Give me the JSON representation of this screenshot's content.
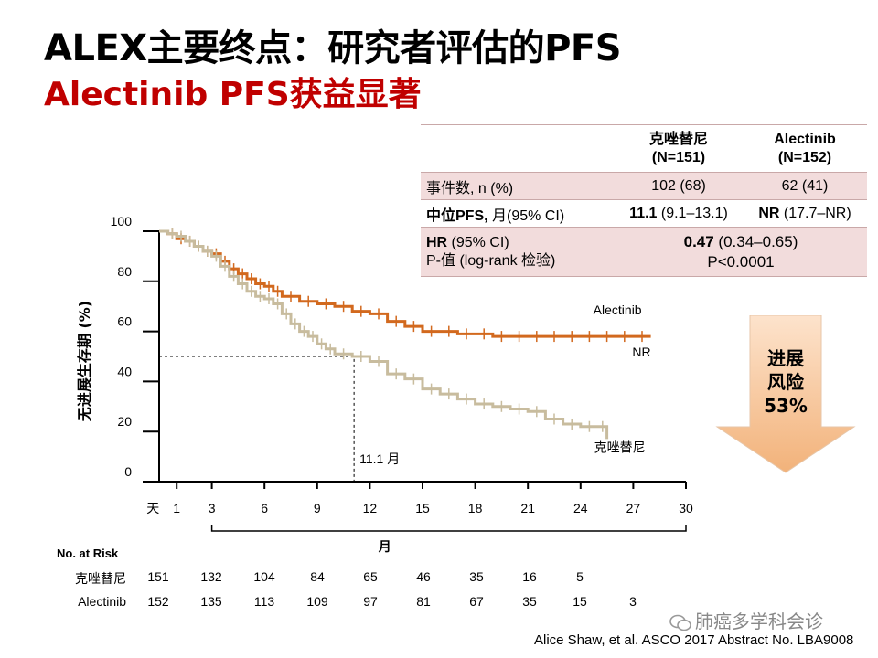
{
  "slide": {
    "title_line1": "ALEX主要终点：研究者评估的PFS",
    "title_line2": "Alectinib PFS获益显著"
  },
  "stats_table": {
    "col_crizotinib": "克唑替尼",
    "col_crizotinib_n": "(N=151)",
    "col_alectinib": "Alectinib",
    "col_alectinib_n": "(N=152)",
    "events_label": "事件数, n (%)",
    "events_crizotinib": "102 (68)",
    "events_alectinib": "62 (41)",
    "median_label_bold": "中位PFS,",
    "median_label_rest": " 月(95% CI)",
    "median_crizotinib_bold": "11.1",
    "median_crizotinib_ci": " (9.1–13.1)",
    "median_alectinib_bold": "NR",
    "median_alectinib_ci": " (17.7–NR)",
    "hr_label_bold": "HR",
    "hr_label_rest": " (95% CI)",
    "pvalue_label": "P-值 (log-rank 检验)",
    "hr_value_bold": "0.47",
    "hr_value_ci": " (0.34–0.65)",
    "pvalue": "P<0.0001"
  },
  "chart_data": {
    "type": "line",
    "ylabel": "无进展生存期 (%)",
    "xlabel": "月",
    "x_ticks": [
      "1",
      "3",
      "6",
      "9",
      "12",
      "15",
      "18",
      "21",
      "24",
      "27",
      "30"
    ],
    "x_tick_values": [
      1,
      3,
      6,
      9,
      12,
      15,
      18,
      21,
      24,
      27,
      30
    ],
    "x_first_prefix": "天",
    "y_ticks": [
      "0",
      "20",
      "40",
      "60",
      "80",
      "100"
    ],
    "ylim": [
      0,
      100
    ],
    "xlim": [
      0,
      30
    ],
    "series": [
      {
        "name": "Alectinib",
        "end_label": "NR",
        "color": "#d2691e",
        "x": [
          0,
          0.5,
          1,
          1.5,
          2,
          2.5,
          3,
          3.5,
          4,
          4.5,
          5,
          5.5,
          6,
          6.5,
          7,
          8,
          9,
          10,
          11,
          12,
          13,
          14,
          15,
          16,
          17,
          18,
          19,
          20,
          21,
          22,
          23,
          24,
          25,
          26,
          27,
          28
        ],
        "y": [
          100,
          99,
          97,
          96,
          94,
          92,
          91,
          88,
          85,
          83,
          81,
          79,
          78,
          76,
          74,
          72,
          71,
          70,
          68,
          67,
          64,
          62,
          60,
          60,
          59,
          59,
          58,
          58,
          58,
          58,
          58,
          58,
          58,
          58,
          58,
          58
        ]
      },
      {
        "name": "克唑替尼",
        "color": "#c8bc9e",
        "x": [
          0,
          0.5,
          1,
          1.5,
          2,
          2.5,
          3,
          3.5,
          4,
          4.5,
          5,
          5.5,
          6,
          6.5,
          7,
          7.5,
          8,
          8.5,
          9,
          9.5,
          10,
          11,
          12,
          13,
          14,
          15,
          16,
          17,
          18,
          19,
          20,
          21,
          22,
          23,
          24,
          25,
          25.5
        ],
        "y": [
          100,
          99,
          98,
          96,
          94,
          92,
          90,
          86,
          82,
          79,
          76,
          74,
          73,
          71,
          67,
          63,
          60,
          58,
          55,
          53,
          51,
          50,
          48,
          43,
          41,
          37,
          35,
          33,
          31,
          30,
          29,
          28,
          25,
          23,
          22,
          22,
          17
        ]
      }
    ],
    "median_marker": {
      "x": 11.1,
      "y": 50,
      "label": "11.1 月"
    }
  },
  "arrow": {
    "line1": "进展",
    "line2": "风险",
    "line3": "53%",
    "color": "#f2b880"
  },
  "risk_table": {
    "title": "No. at Risk",
    "rows": [
      {
        "label": "克唑替尼",
        "values": [
          "151",
          "132",
          "104",
          "84",
          "65",
          "46",
          "35",
          "16",
          "5",
          ""
        ]
      },
      {
        "label": "Alectinib",
        "values": [
          "152",
          "135",
          "113",
          "109",
          "97",
          "81",
          "67",
          "35",
          "15",
          "3"
        ]
      }
    ]
  },
  "footer": {
    "watermark": "肺癌多学科会诊",
    "citation": "Alice Shaw, et al.  ASCO 2017 Abstract No. LBA9008"
  }
}
